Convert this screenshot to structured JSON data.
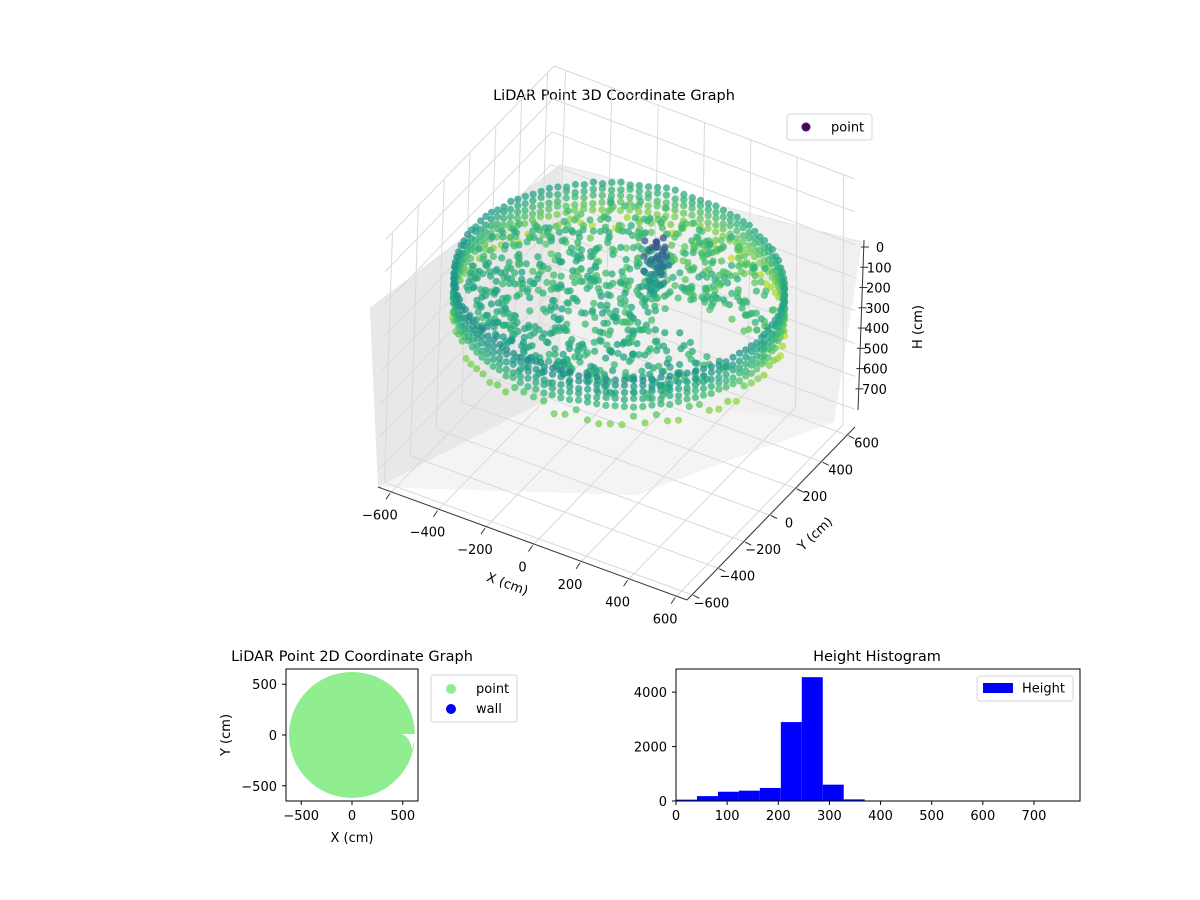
{
  "chart_data": [
    {
      "type": "scatter",
      "projection": "3d",
      "title": "LiDAR Point 3D Coordinate Graph",
      "xlabel": "X (cm)",
      "ylabel": "Y (cm)",
      "zlabel": "H (cm)",
      "xticks": [
        "−600",
        "−400",
        "−200",
        "0",
        "200",
        "400",
        "600"
      ],
      "yticks": [
        "−600",
        "−400",
        "−200",
        "0",
        "200",
        "400",
        "600"
      ],
      "zticks": [
        "0",
        "100",
        "200",
        "300",
        "400",
        "500",
        "600",
        "700"
      ],
      "xlim": [
        -650,
        650
      ],
      "ylim": [
        -650,
        650
      ],
      "zlim": [
        0,
        760
      ],
      "z_inverted": true,
      "colormap": "viridis",
      "grid": true,
      "legend": {
        "position": "top-right",
        "entries": [
          {
            "label": "point",
            "color": "#46085c"
          }
        ]
      },
      "series": [
        {
          "name": "point",
          "description_rings_height_cm": [
            220,
            240,
            260,
            280,
            300
          ],
          "ring_radius_cm": 620
        }
      ]
    },
    {
      "type": "scatter",
      "title": "LiDAR Point 2D Coordinate Graph",
      "xlabel": "X (cm)",
      "ylabel": "Y (cm)",
      "xticks": [
        "−500",
        "0",
        "500"
      ],
      "yticks": [
        "500",
        "0",
        "−500"
      ],
      "xlim": [
        -650,
        650
      ],
      "ylim": [
        -650,
        650
      ],
      "legend": {
        "position": "outside-right",
        "entries": [
          {
            "label": "point",
            "color": "#90ee90"
          },
          {
            "label": "wall",
            "color": "#0000ff"
          }
        ]
      },
      "series": [
        {
          "name": "point",
          "color": "#90ee90",
          "shape": "disc",
          "radius_cm": 620
        },
        {
          "name": "wall",
          "color": "#0000ff",
          "values": []
        }
      ]
    },
    {
      "type": "bar",
      "title": "Height Histogram",
      "xticks": [
        "0",
        "100",
        "200",
        "300",
        "400",
        "500",
        "600",
        "700"
      ],
      "yticks": [
        "0",
        "2000",
        "4000"
      ],
      "xlim": [
        0,
        790
      ],
      "ylim": [
        0,
        4850
      ],
      "bin_width": 41,
      "legend": {
        "position": "top-right",
        "entries": [
          {
            "label": "Height",
            "color": "#0000ff"
          }
        ]
      },
      "series": [
        {
          "name": "Height",
          "color": "#0000ff",
          "bin_starts": [
            0,
            41,
            82,
            123,
            164,
            205,
            246,
            287,
            328,
            369,
            410,
            451,
            492,
            533,
            574,
            615,
            656,
            697,
            738
          ],
          "values": [
            50,
            180,
            340,
            380,
            480,
            2900,
            4550,
            600,
            60,
            10,
            5,
            5,
            5,
            5,
            5,
            5,
            5,
            5,
            5
          ]
        }
      ]
    }
  ]
}
